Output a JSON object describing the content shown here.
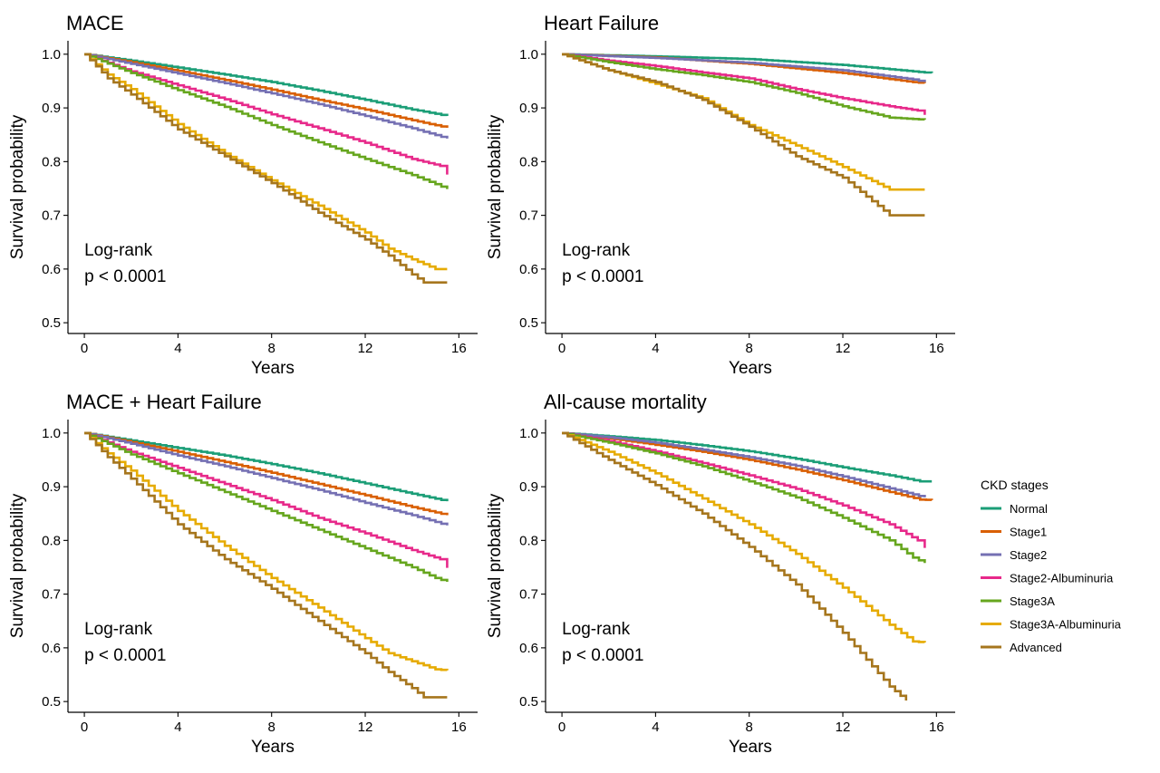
{
  "chart_data": [
    {
      "type": "line",
      "title": "MACE",
      "xlabel": "Years",
      "ylabel": "Survival probability",
      "xlim": [
        -0.7,
        16.8
      ],
      "ylim": [
        0.48,
        1.025
      ],
      "xticks": [
        0,
        4,
        8,
        12,
        16
      ],
      "yticks": [
        0.5,
        0.6,
        0.7,
        0.8,
        0.9,
        1.0
      ],
      "ytick_labels": [
        "0.5",
        "0.6",
        "0.7",
        "0.8",
        "0.9",
        "1.0"
      ],
      "annotation": [
        "Log-rank",
        "p < 0.0001"
      ],
      "grid": false,
      "series": [
        {
          "key": "normal",
          "x": [
            0,
            2,
            4,
            6,
            8,
            10,
            12,
            14,
            15.5
          ],
          "y": [
            1.0,
            0.988,
            0.975,
            0.962,
            0.948,
            0.932,
            0.915,
            0.897,
            0.885
          ]
        },
        {
          "key": "stage1",
          "x": [
            0,
            2,
            4,
            6,
            8,
            10,
            12,
            14,
            15.5
          ],
          "y": [
            1.0,
            0.985,
            0.969,
            0.952,
            0.934,
            0.915,
            0.897,
            0.877,
            0.863
          ]
        },
        {
          "key": "stage2",
          "x": [
            0,
            2,
            4,
            6,
            8,
            10,
            12,
            14,
            15.5
          ],
          "y": [
            1.0,
            0.982,
            0.964,
            0.946,
            0.927,
            0.907,
            0.885,
            0.862,
            0.843
          ]
        },
        {
          "key": "stage2alb",
          "x": [
            0,
            2,
            4,
            6,
            8,
            10,
            12,
            14,
            15.2,
            15.5
          ],
          "y": [
            1.0,
            0.968,
            0.942,
            0.916,
            0.888,
            0.862,
            0.835,
            0.805,
            0.792,
            0.776
          ]
        },
        {
          "key": "stage3a",
          "x": [
            0,
            2,
            4,
            6,
            8,
            10,
            12,
            14,
            15,
            15.5
          ],
          "y": [
            1.0,
            0.965,
            0.933,
            0.902,
            0.868,
            0.836,
            0.805,
            0.775,
            0.758,
            0.749
          ]
        },
        {
          "key": "stage3aalb",
          "x": [
            0,
            1,
            2,
            4,
            6,
            8,
            10,
            12,
            13,
            14,
            15,
            15.5
          ],
          "y": [
            1.0,
            0.962,
            0.935,
            0.87,
            0.815,
            0.765,
            0.718,
            0.668,
            0.638,
            0.618,
            0.6,
            0.6
          ]
        },
        {
          "key": "advanced",
          "x": [
            0,
            1,
            2,
            4,
            6,
            8,
            10,
            12,
            13,
            14,
            14.5,
            15.5
          ],
          "y": [
            1.0,
            0.955,
            0.925,
            0.86,
            0.81,
            0.76,
            0.705,
            0.655,
            0.625,
            0.59,
            0.575,
            0.575
          ]
        }
      ]
    },
    {
      "type": "line",
      "title": "Heart Failure",
      "xlabel": "Years",
      "ylabel": "Survival probability",
      "xlim": [
        -0.7,
        16.8
      ],
      "ylim": [
        0.48,
        1.025
      ],
      "xticks": [
        0,
        4,
        8,
        12,
        16
      ],
      "yticks": [
        0.5,
        0.6,
        0.7,
        0.8,
        0.9,
        1.0
      ],
      "ytick_labels": [
        "0.5",
        "0.6",
        "0.7",
        "0.8",
        "0.9",
        "1.0"
      ],
      "annotation": [
        "Log-rank",
        "p < 0.0001"
      ],
      "grid": false,
      "series": [
        {
          "key": "normal",
          "x": [
            0,
            4,
            8,
            12,
            15.5,
            15.8
          ],
          "y": [
            1.0,
            0.996,
            0.991,
            0.98,
            0.966,
            0.965
          ]
        },
        {
          "key": "stage1",
          "x": [
            0,
            4,
            8,
            12,
            15,
            15.5
          ],
          "y": [
            1.0,
            0.994,
            0.982,
            0.965,
            0.948,
            0.946
          ]
        },
        {
          "key": "stage2",
          "x": [
            0,
            4,
            8,
            12,
            15,
            15.5
          ],
          "y": [
            1.0,
            0.993,
            0.984,
            0.97,
            0.953,
            0.948
          ]
        },
        {
          "key": "stage2alb",
          "x": [
            0,
            2,
            4,
            6,
            8,
            10,
            12,
            14,
            15.2,
            15.5
          ],
          "y": [
            1.0,
            0.988,
            0.978,
            0.966,
            0.955,
            0.935,
            0.918,
            0.903,
            0.895,
            0.887
          ]
        },
        {
          "key": "stage3a",
          "x": [
            0,
            2,
            4,
            6,
            8,
            10,
            12,
            14,
            15.5
          ],
          "y": [
            1.0,
            0.985,
            0.972,
            0.961,
            0.948,
            0.928,
            0.903,
            0.882,
            0.878
          ]
        },
        {
          "key": "stage3aalb",
          "x": [
            0,
            2,
            4,
            6,
            8,
            10,
            12,
            14,
            15.5
          ],
          "y": [
            1.0,
            0.97,
            0.945,
            0.918,
            0.868,
            0.83,
            0.79,
            0.748,
            0.748
          ]
        },
        {
          "key": "advanced",
          "x": [
            0,
            2,
            4,
            6,
            8,
            10,
            12,
            14,
            15.5
          ],
          "y": [
            1.0,
            0.97,
            0.948,
            0.915,
            0.865,
            0.81,
            0.77,
            0.7,
            0.7
          ]
        }
      ]
    },
    {
      "type": "line",
      "title": "MACE + Heart Failure",
      "xlabel": "Years",
      "ylabel": "Survival probability",
      "xlim": [
        -0.7,
        16.8
      ],
      "ylim": [
        0.48,
        1.025
      ],
      "xticks": [
        0,
        4,
        8,
        12,
        16
      ],
      "yticks": [
        0.5,
        0.6,
        0.7,
        0.8,
        0.9,
        1.0
      ],
      "ytick_labels": [
        "0.5",
        "0.6",
        "0.7",
        "0.8",
        "0.9",
        "1.0"
      ],
      "annotation": [
        "Log-rank",
        "p < 0.0001"
      ],
      "grid": false,
      "series": [
        {
          "key": "normal",
          "x": [
            0,
            2,
            4,
            6,
            8,
            10,
            12,
            14,
            15.5
          ],
          "y": [
            1.0,
            0.986,
            0.972,
            0.958,
            0.942,
            0.925,
            0.906,
            0.887,
            0.873
          ]
        },
        {
          "key": "stage1",
          "x": [
            0,
            2,
            4,
            6,
            8,
            10,
            12,
            14,
            15.5
          ],
          "y": [
            1.0,
            0.983,
            0.965,
            0.946,
            0.926,
            0.905,
            0.884,
            0.862,
            0.847
          ]
        },
        {
          "key": "stage2",
          "x": [
            0,
            2,
            4,
            6,
            8,
            10,
            12,
            14,
            15.5
          ],
          "y": [
            1.0,
            0.98,
            0.958,
            0.938,
            0.916,
            0.894,
            0.87,
            0.847,
            0.828
          ]
        },
        {
          "key": "stage2alb",
          "x": [
            0,
            2,
            4,
            6,
            8,
            10,
            12,
            14,
            15.2,
            15.5
          ],
          "y": [
            1.0,
            0.965,
            0.935,
            0.905,
            0.875,
            0.842,
            0.813,
            0.782,
            0.765,
            0.749
          ]
        },
        {
          "key": "stage3a",
          "x": [
            0,
            2,
            4,
            6,
            8,
            10,
            12,
            14,
            15,
            15.5
          ],
          "y": [
            1.0,
            0.96,
            0.925,
            0.89,
            0.855,
            0.82,
            0.785,
            0.75,
            0.73,
            0.723
          ]
        },
        {
          "key": "stage3aalb",
          "x": [
            0,
            1,
            2,
            4,
            6,
            8,
            10,
            12,
            13,
            14,
            15,
            15.5
          ],
          "y": [
            1.0,
            0.962,
            0.93,
            0.855,
            0.79,
            0.73,
            0.675,
            0.618,
            0.59,
            0.575,
            0.56,
            0.558
          ]
        },
        {
          "key": "advanced",
          "x": [
            0,
            1,
            2,
            4,
            6,
            8,
            10,
            12,
            13,
            14,
            14.5,
            15.5
          ],
          "y": [
            1.0,
            0.955,
            0.915,
            0.83,
            0.765,
            0.71,
            0.65,
            0.59,
            0.555,
            0.525,
            0.508,
            0.508
          ]
        }
      ]
    },
    {
      "type": "line",
      "title": "All-cause mortality",
      "xlabel": "Years",
      "ylabel": "Survival probability",
      "xlim": [
        -0.7,
        16.8
      ],
      "ylim": [
        0.48,
        1.025
      ],
      "xticks": [
        0,
        4,
        8,
        12,
        16
      ],
      "yticks": [
        0.5,
        0.6,
        0.7,
        0.8,
        0.9,
        1.0
      ],
      "ytick_labels": [
        "0.5",
        "0.6",
        "0.7",
        "0.8",
        "0.9",
        "1.0"
      ],
      "annotation": [
        "Log-rank",
        "p < 0.0001"
      ],
      "grid": false,
      "series": [
        {
          "key": "normal",
          "x": [
            0,
            2,
            4,
            6,
            8,
            10,
            12,
            14,
            15.3,
            15.8
          ],
          "y": [
            1.0,
            0.994,
            0.987,
            0.977,
            0.966,
            0.952,
            0.936,
            0.921,
            0.91,
            0.91
          ]
        },
        {
          "key": "stage1",
          "x": [
            0,
            2,
            4,
            6,
            8,
            10,
            12,
            14,
            15.3,
            15.8
          ],
          "y": [
            1.0,
            0.99,
            0.978,
            0.965,
            0.95,
            0.932,
            0.912,
            0.89,
            0.876,
            0.875
          ]
        },
        {
          "key": "stage2",
          "x": [
            0,
            2,
            4,
            6,
            8,
            10,
            12,
            14,
            15.5
          ],
          "y": [
            1.0,
            0.992,
            0.982,
            0.969,
            0.955,
            0.939,
            0.919,
            0.897,
            0.88
          ]
        },
        {
          "key": "stage2alb",
          "x": [
            0,
            2,
            4,
            6,
            8,
            10,
            12,
            14,
            15.2,
            15.5
          ],
          "y": [
            1.0,
            0.985,
            0.966,
            0.944,
            0.921,
            0.896,
            0.865,
            0.83,
            0.8,
            0.786
          ]
        },
        {
          "key": "stage3a",
          "x": [
            0,
            2,
            4,
            6,
            8,
            10,
            12,
            14,
            15,
            15.5
          ],
          "y": [
            1.0,
            0.982,
            0.962,
            0.938,
            0.91,
            0.88,
            0.842,
            0.8,
            0.768,
            0.758
          ]
        },
        {
          "key": "stage3aalb",
          "x": [
            0,
            2,
            4,
            6,
            8,
            10,
            12,
            13,
            14,
            15,
            15.5
          ],
          "y": [
            1.0,
            0.965,
            0.925,
            0.878,
            0.83,
            0.775,
            0.712,
            0.678,
            0.643,
            0.612,
            0.61
          ]
        },
        {
          "key": "advanced",
          "x": [
            0,
            2,
            4,
            6,
            8,
            10,
            12,
            13,
            14,
            14.7
          ],
          "y": [
            1.0,
            0.95,
            0.903,
            0.85,
            0.788,
            0.718,
            0.628,
            0.578,
            0.528,
            0.502
          ]
        }
      ]
    }
  ],
  "legend": {
    "title": "CKD stages",
    "placement": "right",
    "items": [
      {
        "key": "normal",
        "label": "Normal",
        "color": "#1b9e77"
      },
      {
        "key": "stage1",
        "label": "Stage1",
        "color": "#d95f02"
      },
      {
        "key": "stage2",
        "label": "Stage2",
        "color": "#7570b3"
      },
      {
        "key": "stage2alb",
        "label": "Stage2-Albuminuria",
        "color": "#e7298a"
      },
      {
        "key": "stage3a",
        "label": "Stage3A",
        "color": "#66a61e"
      },
      {
        "key": "stage3aalb",
        "label": "Stage3A-Albuminuria",
        "color": "#e6ab02"
      },
      {
        "key": "advanced",
        "label": "Advanced",
        "color": "#a6761d"
      }
    ]
  }
}
